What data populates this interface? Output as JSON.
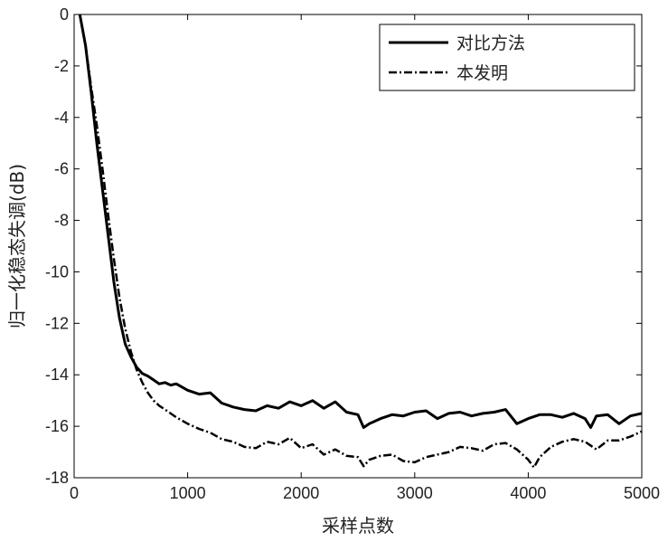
{
  "chart_data": {
    "type": "line",
    "title": "",
    "xlabel": "采样点数",
    "ylabel": "归一化稳态失调(dB)",
    "xlim": [
      0,
      5000
    ],
    "ylim": [
      -18,
      0
    ],
    "xticks": [
      0,
      1000,
      2000,
      3000,
      4000,
      5000
    ],
    "yticks": [
      0,
      -2,
      -4,
      -6,
      -8,
      -10,
      -12,
      -14,
      -16,
      -18
    ],
    "grid": false,
    "legend_position": "top-right",
    "series": [
      {
        "name": "对比方法",
        "style": "solid",
        "color": "#000000",
        "x": [
          50,
          100,
          150,
          200,
          250,
          300,
          350,
          400,
          450,
          500,
          550,
          600,
          650,
          700,
          750,
          800,
          850,
          900,
          1000,
          1100,
          1200,
          1300,
          1400,
          1500,
          1600,
          1700,
          1800,
          1900,
          2000,
          2100,
          2200,
          2300,
          2400,
          2500,
          2550,
          2600,
          2700,
          2800,
          2900,
          3000,
          3100,
          3200,
          3300,
          3400,
          3500,
          3600,
          3700,
          3800,
          3900,
          4000,
          4100,
          4200,
          4300,
          4400,
          4500,
          4550,
          4600,
          4700,
          4800,
          4900,
          5000
        ],
        "y": [
          0,
          -1.2,
          -3.0,
          -5.0,
          -6.8,
          -8.6,
          -10.4,
          -11.8,
          -12.8,
          -13.3,
          -13.7,
          -13.95,
          -14.05,
          -14.2,
          -14.35,
          -14.3,
          -14.4,
          -14.35,
          -14.6,
          -14.75,
          -14.7,
          -15.1,
          -15.25,
          -15.35,
          -15.4,
          -15.2,
          -15.3,
          -15.05,
          -15.2,
          -15.0,
          -15.3,
          -15.05,
          -15.45,
          -15.55,
          -16.05,
          -15.9,
          -15.7,
          -15.55,
          -15.6,
          -15.45,
          -15.4,
          -15.7,
          -15.5,
          -15.45,
          -15.6,
          -15.5,
          -15.45,
          -15.35,
          -15.9,
          -15.7,
          -15.55,
          -15.55,
          -15.65,
          -15.5,
          -15.7,
          -16.05,
          -15.6,
          -15.55,
          -15.9,
          -15.6,
          -15.5
        ]
      },
      {
        "name": "本发明",
        "style": "dashdot",
        "color": "#000000",
        "x": [
          50,
          100,
          150,
          200,
          250,
          300,
          350,
          400,
          450,
          500,
          550,
          600,
          650,
          700,
          750,
          800,
          900,
          1000,
          1100,
          1200,
          1300,
          1400,
          1500,
          1600,
          1700,
          1800,
          1900,
          2000,
          2100,
          2200,
          2300,
          2400,
          2500,
          2550,
          2600,
          2700,
          2800,
          2900,
          3000,
          3100,
          3200,
          3300,
          3400,
          3500,
          3600,
          3700,
          3800,
          3900,
          4000,
          4050,
          4100,
          4200,
          4300,
          4400,
          4500,
          4600,
          4700,
          4800,
          4900,
          5000
        ],
        "y": [
          0,
          -1.2,
          -2.8,
          -4.3,
          -6.0,
          -7.8,
          -9.5,
          -11.0,
          -12.2,
          -13.1,
          -13.8,
          -14.3,
          -14.7,
          -15.0,
          -15.2,
          -15.35,
          -15.65,
          -15.9,
          -16.1,
          -16.25,
          -16.5,
          -16.6,
          -16.8,
          -16.85,
          -16.6,
          -16.7,
          -16.45,
          -16.85,
          -16.7,
          -17.1,
          -16.9,
          -17.15,
          -17.2,
          -17.55,
          -17.3,
          -17.15,
          -17.1,
          -17.35,
          -17.4,
          -17.2,
          -17.1,
          -17.0,
          -16.8,
          -16.85,
          -16.95,
          -16.7,
          -16.65,
          -16.9,
          -17.3,
          -17.6,
          -17.2,
          -16.8,
          -16.6,
          -16.5,
          -16.6,
          -16.9,
          -16.55,
          -16.55,
          -16.4,
          -16.2
        ]
      }
    ]
  }
}
